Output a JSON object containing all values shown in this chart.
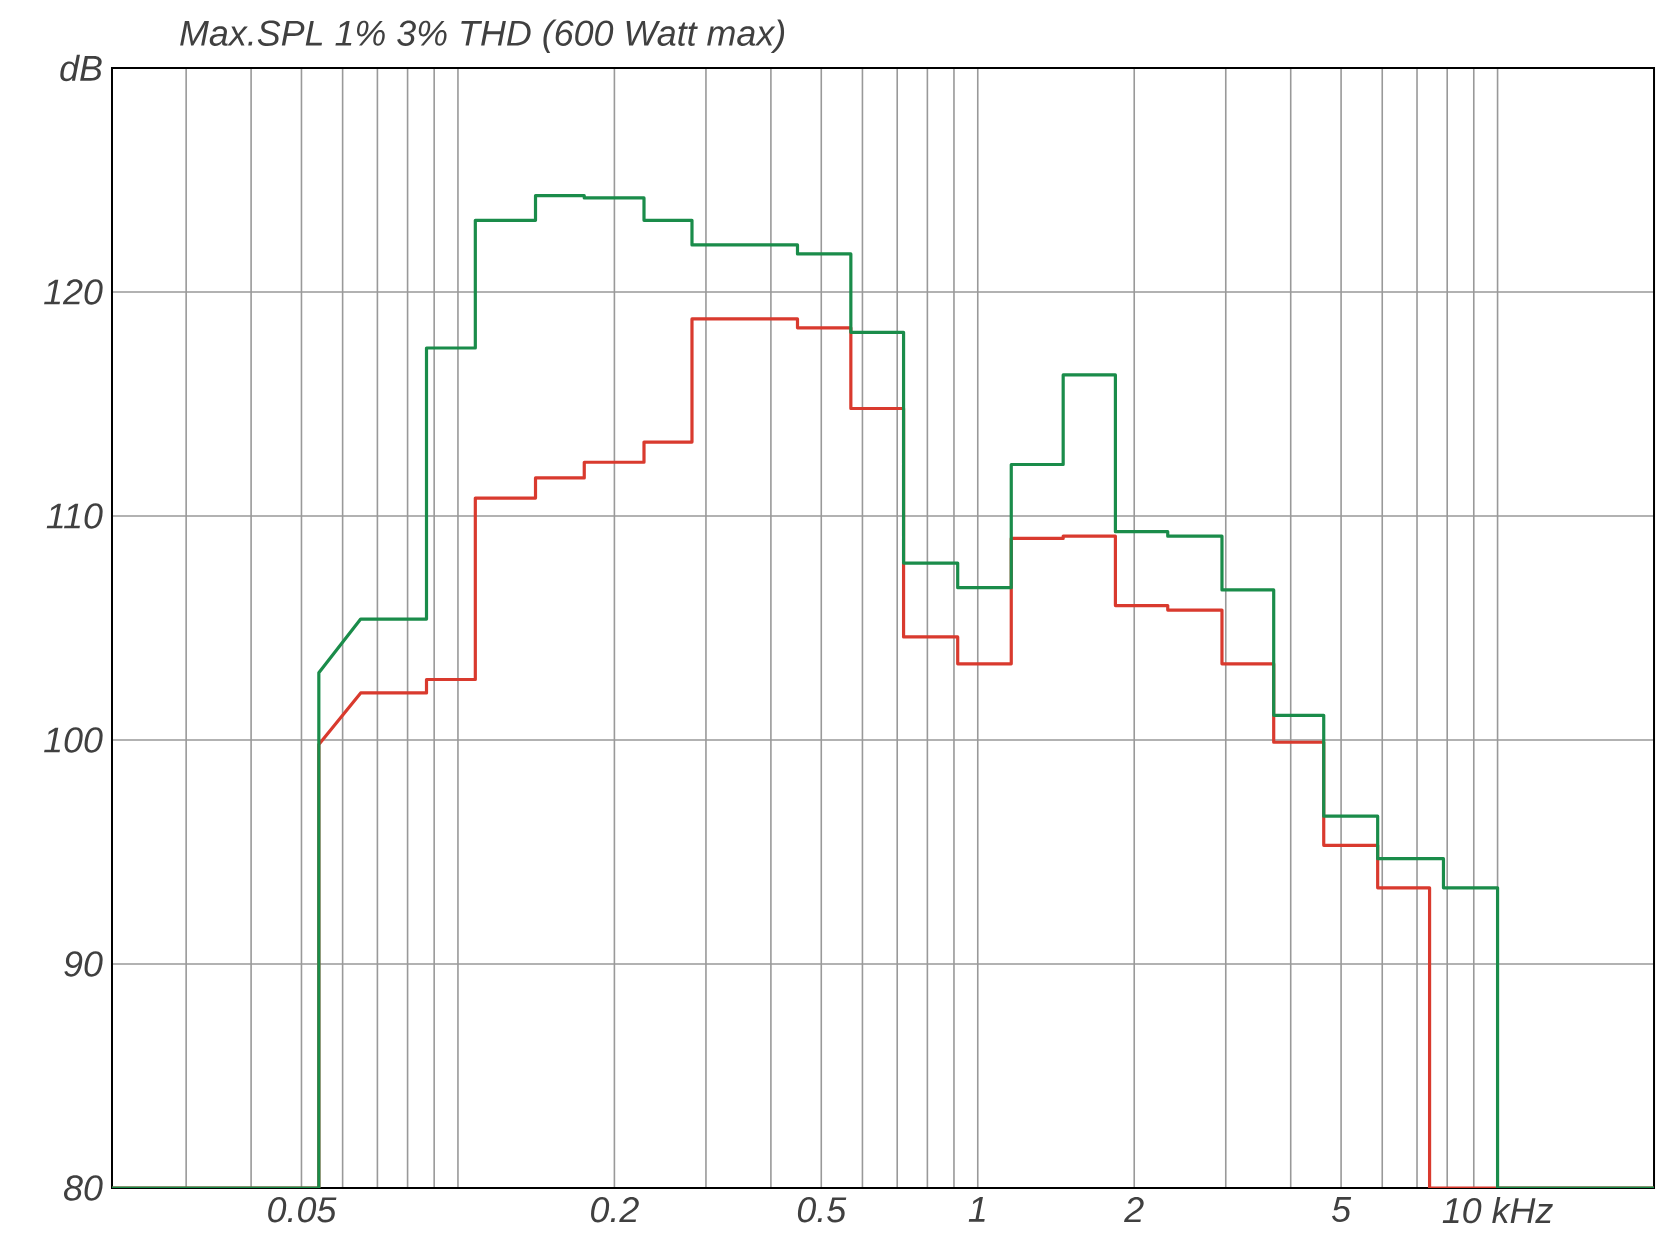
{
  "chart_data": {
    "type": "line",
    "title": "Max.SPL 1% 3% THD (600 Watt max)",
    "log": "x",
    "grid": true,
    "line_style": "solid",
    "marker": "none",
    "xlim": [
      0.0216,
      20
    ],
    "ylim": [
      80,
      130
    ],
    "xticks": [
      {
        "value": 0.03,
        "label": null
      },
      {
        "value": 0.04,
        "label": null
      },
      0.05,
      {
        "value": 0.06,
        "label": null
      },
      {
        "value": 0.07,
        "label": null
      },
      {
        "value": 0.08,
        "label": null
      },
      {
        "value": 0.09,
        "label": null
      },
      {
        "value": 0.1,
        "label": null
      },
      0.2,
      {
        "value": 0.3,
        "label": null
      },
      {
        "value": 0.4,
        "label": null
      },
      0.5,
      {
        "value": 0.6,
        "label": null
      },
      {
        "value": 0.7,
        "label": null
      },
      {
        "value": 0.8,
        "label": null
      },
      {
        "value": 0.9,
        "label": null
      },
      1,
      2,
      {
        "value": 3,
        "label": null
      },
      {
        "value": 4,
        "label": null
      },
      5,
      {
        "value": 6,
        "label": null
      },
      {
        "value": 7,
        "label": null
      },
      {
        "value": 8,
        "label": null
      },
      {
        "value": 9,
        "label": null
      },
      {
        "value": 10,
        "label": "10 kHz"
      }
    ],
    "yticks": [
      80,
      90,
      100,
      110,
      120,
      {
        "value": 130,
        "label": "dB"
      }
    ],
    "series": [
      {
        "color": "#d93a2e",
        "x": [
          0.0216,
          0.054,
          0.054,
          0.065,
          0.087,
          0.087,
          0.108,
          0.108,
          0.141,
          0.141,
          0.175,
          0.175,
          0.228,
          0.228,
          0.282,
          0.282,
          0.45,
          0.45,
          0.57,
          0.57,
          0.72,
          0.72,
          0.915,
          0.915,
          1.16,
          1.16,
          1.46,
          1.46,
          1.84,
          1.84,
          2.32,
          2.32,
          2.95,
          2.95,
          3.71,
          3.71,
          4.63,
          4.63,
          5.88,
          5.88,
          7.4,
          7.4,
          20
        ],
        "values": [
          80,
          80,
          99.8,
          102.1,
          102.1,
          102.7,
          102.7,
          110.8,
          110.8,
          111.7,
          111.7,
          112.4,
          112.4,
          113.3,
          113.3,
          118.8,
          118.8,
          118.4,
          118.4,
          114.8,
          114.8,
          104.6,
          104.6,
          103.4,
          103.4,
          109.0,
          109.0,
          109.1,
          109.1,
          106.0,
          106.0,
          105.8,
          105.8,
          103.4,
          103.4,
          99.9,
          99.9,
          95.3,
          95.3,
          93.4,
          93.4,
          80,
          80
        ]
      },
      {
        "color": "#1a8c4a",
        "x": [
          0.0216,
          0.054,
          0.054,
          0.065,
          0.087,
          0.087,
          0.108,
          0.108,
          0.141,
          0.141,
          0.175,
          0.175,
          0.228,
          0.228,
          0.282,
          0.282,
          0.45,
          0.45,
          0.57,
          0.57,
          0.72,
          0.72,
          0.915,
          0.915,
          1.16,
          1.16,
          1.46,
          1.46,
          1.84,
          1.84,
          2.32,
          2.32,
          2.95,
          2.95,
          3.71,
          3.71,
          4.63,
          4.63,
          5.88,
          5.88,
          7.87,
          7.87,
          10,
          10,
          20
        ],
        "values": [
          80,
          80,
          103.0,
          105.4,
          105.4,
          117.5,
          117.5,
          123.2,
          123.2,
          124.3,
          124.3,
          124.2,
          124.2,
          123.2,
          123.2,
          122.1,
          122.1,
          121.7,
          121.7,
          118.2,
          118.2,
          107.9,
          107.9,
          106.8,
          106.8,
          112.3,
          112.3,
          116.3,
          116.3,
          109.3,
          109.3,
          109.1,
          109.1,
          106.7,
          106.7,
          101.1,
          101.1,
          96.6,
          96.6,
          94.7,
          94.7,
          93.4,
          93.4,
          80,
          80
        ]
      }
    ]
  }
}
